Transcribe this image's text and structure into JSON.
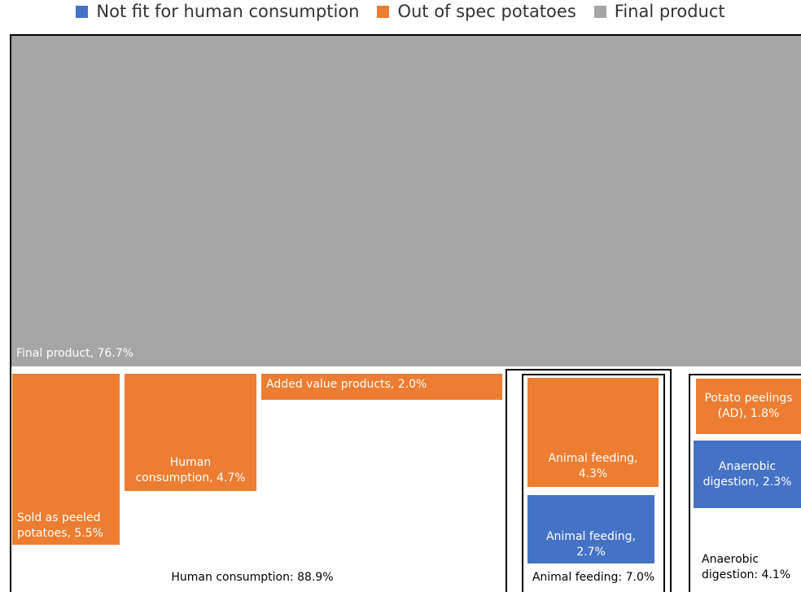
{
  "chart_data": {
    "type": "treemap",
    "series": [
      {
        "name": "Not fit for human consumption",
        "color": "#4472c4"
      },
      {
        "name": "Out of spec potatoes",
        "color": "#ed7d31"
      },
      {
        "name": "Final product",
        "color": "#a5a5a5"
      }
    ],
    "tiles": [
      {
        "value": 76.7,
        "value_label": "Final product, 76.7%",
        "color": "#a5a5a5"
      }
    ],
    "groups": [
      {
        "value": 88.9,
        "value_label": "Human consumption: 88.9%",
        "tiles": [
          {
            "value": 5.5,
            "value_label": "Sold as peeled potatoes, 5.5%",
            "color": "#ed7d31"
          },
          {
            "value": 4.7,
            "value_label": "Human consumption, 4.7%",
            "color": "#ed7d31"
          },
          {
            "value": 2.0,
            "value_label": "Added value products, 2.0%",
            "color": "#ed7d31"
          }
        ]
      },
      {
        "value": 7.0,
        "value_label": "Animal feeding: 7.0%",
        "tiles": [
          {
            "value": 4.3,
            "value_label": "Animal feeding, 4.3%",
            "color": "#ed7d31"
          },
          {
            "value": 2.7,
            "value_label": "Animal feeding, 2.7%",
            "color": "#4472c4"
          }
        ]
      },
      {
        "value": 4.1,
        "value_label": "Anaerobic digestion: 4.1%",
        "tiles": [
          {
            "value": 1.8,
            "value_label": "Potato peelings (AD), 1.8%",
            "color": "#ed7d31"
          },
          {
            "value": 2.3,
            "value_label": "Anaerobic digestion, 2.3%",
            "color": "#4472c4"
          }
        ]
      }
    ]
  }
}
